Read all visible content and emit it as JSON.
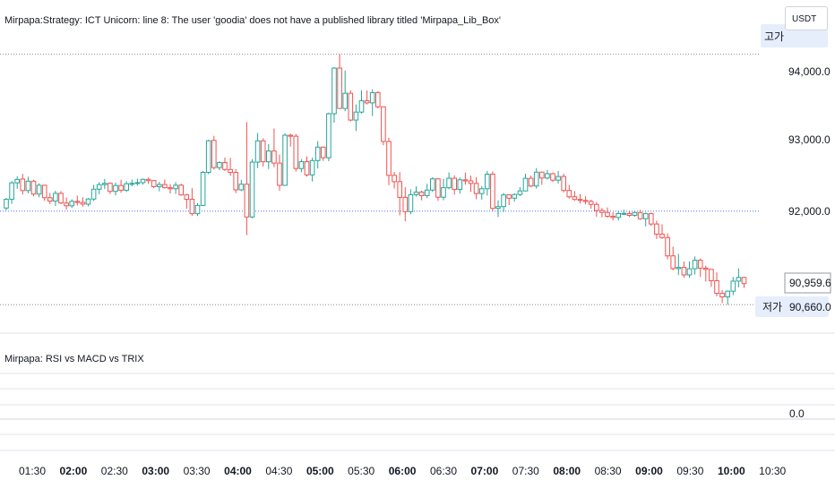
{
  "header": {
    "strategy_error": "Mirpapa:Strategy: ICT Unicorn: line 8: The user 'goodia' does not have a published library titled 'Mirpapa_Lib_Box'",
    "indicator_title": "Mirpapa: RSI vs MACD vs TRIX"
  },
  "currency": "USDT",
  "price_axis": {
    "ticks": [
      "94,000.0",
      "93,000.0",
      "92,000.0"
    ],
    "current_price": "90,959.6",
    "low_value": "90,660.0",
    "high_label": "고가",
    "low_label": "저가",
    "indicator_tick": "0.0"
  },
  "time_axis": [
    "01:30",
    "02:00",
    "02:30",
    "03:00",
    "03:30",
    "04:00",
    "04:30",
    "05:00",
    "05:30",
    "06:00",
    "06:30",
    "07:00",
    "07:30",
    "08:00",
    "08:30",
    "09:00",
    "09:30",
    "10:00",
    "10:30"
  ],
  "colors": {
    "up": "#26a69a",
    "down": "#ef5350",
    "grid": "#d1d4dc",
    "level_line": "#2962ff"
  },
  "chart_data": {
    "type": "candlestick",
    "interval_minutes": 5,
    "y_unit": "USDT",
    "ohlc": [
      [
        92045,
        92190,
        92012,
        92170
      ],
      [
        92170,
        92432,
        92105,
        92406
      ],
      [
        92406,
        92500,
        92320,
        92455
      ],
      [
        92460,
        92534,
        92238,
        92295
      ],
      [
        92295,
        92494,
        92255,
        92430
      ],
      [
        92430,
        92450,
        92213,
        92245
      ],
      [
        92245,
        92400,
        92199,
        92371
      ],
      [
        92371,
        92378,
        92148,
        92193
      ],
      [
        92193,
        92259,
        92100,
        92144
      ],
      [
        92144,
        92294,
        92074,
        92255
      ],
      [
        92255,
        92290,
        92101,
        92117
      ],
      [
        92117,
        92195,
        92022,
        92077
      ],
      [
        92077,
        92170,
        92044,
        92140
      ],
      [
        92140,
        92223,
        92080,
        92125
      ],
      [
        92125,
        92200,
        92064,
        92101
      ],
      [
        92101,
        92189,
        92070,
        92174
      ],
      [
        92174,
        92378,
        92145,
        92315
      ],
      [
        92315,
        92417,
        92244,
        92380
      ],
      [
        92380,
        92463,
        92317,
        92399
      ],
      [
        92399,
        92413,
        92247,
        92283
      ],
      [
        92283,
        92411,
        92226,
        92368
      ],
      [
        92368,
        92451,
        92264,
        92300
      ],
      [
        92300,
        92430,
        92274,
        92393
      ],
      [
        92393,
        92452,
        92355,
        92398
      ],
      [
        92398,
        92466,
        92366,
        92409
      ],
      [
        92409,
        92467,
        92379,
        92456
      ],
      [
        92456,
        92480,
        92392,
        92438
      ],
      [
        92438,
        92443,
        92330,
        92351
      ],
      [
        92351,
        92421,
        92285,
        92382
      ],
      [
        92382,
        92453,
        92324,
        92336
      ],
      [
        92336,
        92388,
        92254,
        92321
      ],
      [
        92321,
        92417,
        92247,
        92372
      ],
      [
        92372,
        92394,
        92222,
        92233
      ],
      [
        92233,
        92247,
        92035,
        92170
      ],
      [
        92170,
        92329,
        91933,
        91964
      ],
      [
        91964,
        92117,
        91930,
        92082
      ],
      [
        92082,
        92576,
        92081,
        92556
      ],
      [
        92556,
        93024,
        92531,
        93009
      ],
      [
        93014,
        93080,
        92596,
        92624
      ],
      [
        92624,
        92714,
        92588,
        92697
      ],
      [
        92697,
        92767,
        92576,
        92597
      ],
      [
        92597,
        92764,
        92507,
        92555
      ],
      [
        92555,
        92603,
        92259,
        92306
      ],
      [
        92306,
        92449,
        92288,
        92386
      ],
      [
        92386,
        93277,
        91656,
        91917
      ],
      [
        91917,
        92745,
        91898,
        92703
      ],
      [
        92703,
        93121,
        92618,
        93008
      ],
      [
        93008,
        93044,
        92640,
        92708
      ],
      [
        92708,
        92960,
        92604,
        92862
      ],
      [
        92862,
        93185,
        92631,
        92689
      ],
      [
        92689,
        92811,
        92294,
        92370
      ],
      [
        92370,
        93114,
        92366,
        93088
      ],
      [
        93088,
        93111,
        92926,
        93074
      ],
      [
        93074,
        93107,
        92568,
        92611
      ],
      [
        92611,
        92748,
        92558,
        92709
      ],
      [
        92709,
        92785,
        92498,
        92520
      ],
      [
        92520,
        92766,
        92425,
        92725
      ],
      [
        92725,
        93004,
        92612,
        92918
      ],
      [
        92918,
        92929,
        92720,
        92766
      ],
      [
        92766,
        93413,
        92716,
        93397
      ],
      [
        93397,
        94066,
        93269,
        94051
      ],
      [
        94051,
        94250,
        93465,
        93472
      ],
      [
        93472,
        94016,
        93432,
        93690
      ],
      [
        93690,
        93734,
        93287,
        93306
      ],
      [
        93306,
        93530,
        93149,
        93420
      ],
      [
        93420,
        93730,
        93398,
        93582
      ],
      [
        93582,
        93731,
        93530,
        93552
      ],
      [
        93552,
        93748,
        93365,
        93699
      ],
      [
        93699,
        93721,
        93474,
        93496
      ],
      [
        93496,
        93503,
        92946,
        92999
      ],
      [
        92999,
        93052,
        92373,
        92513
      ],
      [
        92513,
        92562,
        92324,
        92423
      ],
      [
        92423,
        92559,
        91940,
        92198
      ],
      [
        92198,
        92343,
        91854,
        91993
      ],
      [
        91993,
        92314,
        91954,
        92236
      ],
      [
        92236,
        92355,
        92209,
        92273
      ],
      [
        92273,
        92293,
        92155,
        92223
      ],
      [
        92223,
        92392,
        92187,
        92302
      ],
      [
        92302,
        92487,
        92277,
        92463
      ],
      [
        92463,
        92475,
        92147,
        92200
      ],
      [
        92200,
        92461,
        92156,
        92336
      ],
      [
        92336,
        92555,
        92313,
        92472
      ],
      [
        92472,
        92514,
        92237,
        92311
      ],
      [
        92311,
        92482,
        92251,
        92449
      ],
      [
        92449,
        92552,
        92379,
        92434
      ],
      [
        92434,
        92510,
        92276,
        92397
      ],
      [
        92397,
        92488,
        92170,
        92252
      ],
      [
        92252,
        92359,
        92165,
        92321
      ],
      [
        92321,
        92575,
        92226,
        92530
      ],
      [
        92530,
        92567,
        92004,
        92041
      ],
      [
        92041,
        92155,
        91915,
        92066
      ],
      [
        92066,
        92262,
        91991,
        92233
      ],
      [
        92233,
        92245,
        92087,
        92186
      ],
      [
        92186,
        92256,
        92136,
        92239
      ],
      [
        92239,
        92345,
        92215,
        92290
      ],
      [
        92290,
        92536,
        92284,
        92471
      ],
      [
        92471,
        92511,
        92343,
        92360
      ],
      [
        92360,
        92618,
        92322,
        92559
      ],
      [
        92559,
        92568,
        92378,
        92475
      ],
      [
        92475,
        92591,
        92454,
        92537
      ],
      [
        92537,
        92553,
        92420,
        92444
      ],
      [
        92444,
        92576,
        92396,
        92497
      ],
      [
        92497,
        92535,
        92270,
        92297
      ],
      [
        92297,
        92376,
        92180,
        92206
      ],
      [
        92206,
        92289,
        92148,
        92168
      ],
      [
        92168,
        92244,
        92111,
        92154
      ],
      [
        92154,
        92214,
        92095,
        92139
      ],
      [
        92139,
        92165,
        92035,
        92097
      ],
      [
        92097,
        92130,
        91920,
        92010
      ],
      [
        92010,
        92045,
        91912,
        91982
      ],
      [
        91982,
        92054,
        91908,
        91926
      ],
      [
        91926,
        91986,
        91868,
        91910
      ],
      [
        91910,
        91995,
        91866,
        91965
      ],
      [
        91965,
        92020,
        91942,
        91968
      ],
      [
        91968,
        92000,
        91915,
        91940
      ],
      [
        91940,
        92006,
        91920,
        91981
      ],
      [
        91981,
        92019,
        91876,
        91891
      ],
      [
        91891,
        91979,
        91782,
        91964
      ],
      [
        91964,
        91980,
        91789,
        91816
      ],
      [
        91816,
        91864,
        91600,
        91671
      ],
      [
        91671,
        91812,
        91603,
        91621
      ],
      [
        91621,
        91681,
        91310,
        91359
      ],
      [
        91359,
        91490,
        91149,
        91177
      ],
      [
        91177,
        91388,
        91084,
        91194
      ],
      [
        91194,
        91278,
        91047,
        91086
      ],
      [
        91086,
        91278,
        91045,
        91175
      ],
      [
        91175,
        91351,
        91092,
        91297
      ],
      [
        91297,
        91322,
        91057,
        91183
      ],
      [
        91183,
        91219,
        90991,
        91166
      ],
      [
        91166,
        91168,
        90916,
        91003
      ],
      [
        91003,
        91121,
        90779,
        90822
      ],
      [
        90822,
        90870,
        90684,
        90771
      ],
      [
        90771,
        90862,
        90660,
        90853
      ],
      [
        90853,
        91057,
        90795,
        90997
      ],
      [
        90997,
        91180,
        90908,
        91050
      ],
      [
        91050,
        91058,
        90900,
        90961
      ]
    ]
  }
}
